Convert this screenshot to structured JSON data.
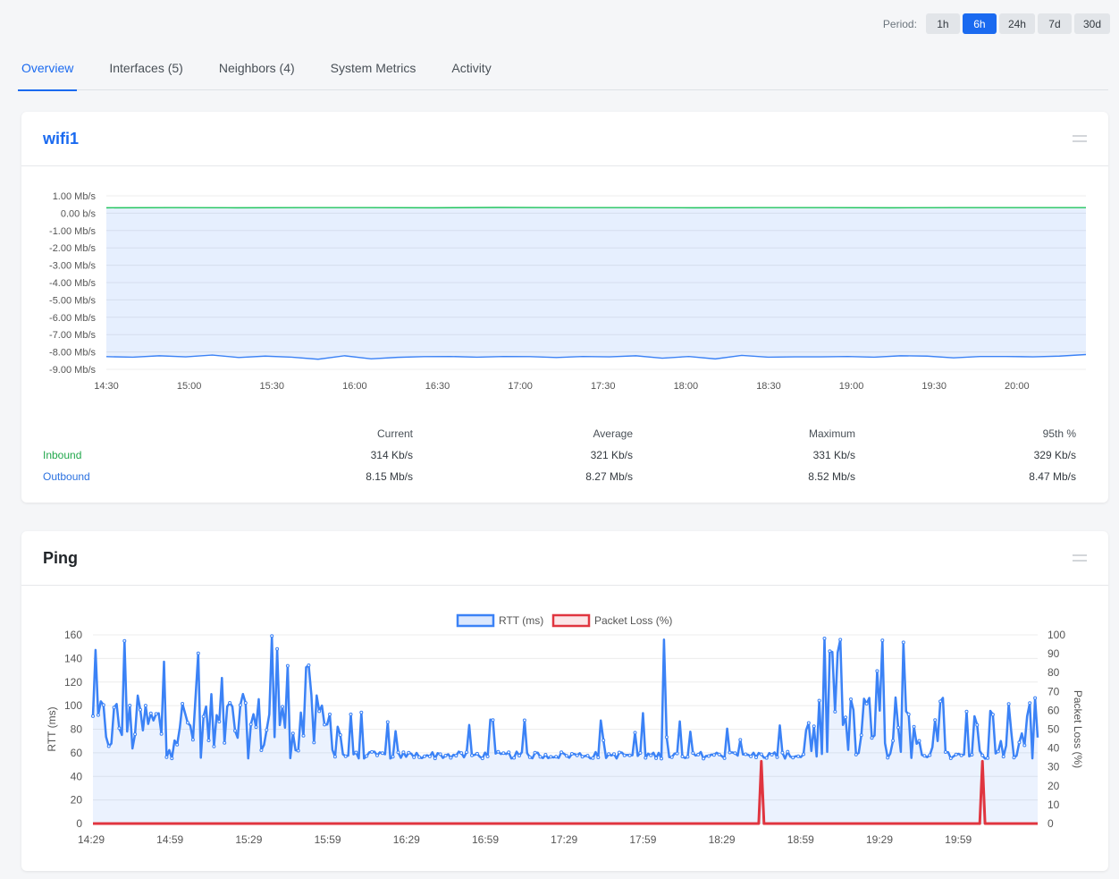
{
  "period": {
    "label": "Period:",
    "options": [
      "1h",
      "6h",
      "24h",
      "7d",
      "30d"
    ],
    "selected": "6h"
  },
  "tabs": [
    {
      "label": "Overview",
      "active": true
    },
    {
      "label": "Interfaces (5)",
      "active": false
    },
    {
      "label": "Neighbors (4)",
      "active": false
    },
    {
      "label": "System Metrics",
      "active": false
    },
    {
      "label": "Activity",
      "active": false
    }
  ],
  "wifi_card": {
    "title": "wifi1",
    "stats": {
      "headers": [
        "Current",
        "Average",
        "Maximum",
        "95th %"
      ],
      "rows": [
        {
          "label": "Inbound",
          "values": [
            "314 Kb/s",
            "321 Kb/s",
            "331 Kb/s",
            "329 Kb/s"
          ]
        },
        {
          "label": "Outbound",
          "values": [
            "8.15 Mb/s",
            "8.27 Mb/s",
            "8.52 Mb/s",
            "8.47 Mb/s"
          ]
        }
      ]
    }
  },
  "ping_card": {
    "title": "Ping"
  },
  "colors": {
    "accent": "#1a6af0",
    "inbound": "#22c55e",
    "outbound": "#3b82f6",
    "rtt": "#3b82f6",
    "loss": "#e0353f"
  },
  "chart_data": [
    {
      "type": "area",
      "yticks": [
        "1.00 Mb/s",
        "0.00 b/s",
        "-1.00 Mb/s",
        "-2.00 Mb/s",
        "-3.00 Mb/s",
        "-4.00 Mb/s",
        "-5.00 Mb/s",
        "-6.00 Mb/s",
        "-7.00 Mb/s",
        "-8.00 Mb/s",
        "-9.00 Mb/s"
      ],
      "ylim": [
        -9,
        1
      ],
      "xticks": [
        "14:30",
        "15:00",
        "15:30",
        "16:00",
        "16:30",
        "17:00",
        "17:30",
        "18:00",
        "18:30",
        "19:00",
        "19:30",
        "20:00"
      ],
      "x_range_minutes_from_1430": [
        0,
        355
      ],
      "series": [
        {
          "name": "Inbound",
          "values_mbps": [
            0.31,
            0.32,
            0.31,
            0.32,
            0.32,
            0.31,
            0.33,
            0.32,
            0.32,
            0.31,
            0.32,
            0.32,
            0.31,
            0.32,
            0.32,
            0.32
          ]
        },
        {
          "name": "Outbound",
          "values_mbps": [
            -8.27,
            -8.3,
            -8.22,
            -8.28,
            -8.18,
            -8.32,
            -8.24,
            -8.3,
            -8.42,
            -8.22,
            -8.4,
            -8.31,
            -8.27,
            -8.26,
            -8.3,
            -8.26,
            -8.27,
            -8.32,
            -8.26,
            -8.28,
            -8.22,
            -8.36,
            -8.26,
            -8.4,
            -8.2,
            -8.3,
            -8.28,
            -8.28,
            -8.26,
            -8.3,
            -8.22,
            -8.24,
            -8.34,
            -8.26,
            -8.26,
            -8.28,
            -8.24,
            -8.15
          ]
        }
      ],
      "grid": true
    },
    {
      "type": "line",
      "legend": [
        "RTT (ms)",
        "Packet Loss (%)"
      ],
      "legend_position": "top-center",
      "ylabel_left": "RTT (ms)",
      "ylabel_right": "Packet Loss (%)",
      "yleft_ticks": [
        0,
        20,
        40,
        60,
        80,
        100,
        120,
        140,
        160
      ],
      "yright_ticks": [
        0,
        10,
        20,
        30,
        40,
        50,
        60,
        70,
        80,
        90,
        100
      ],
      "ylim_left": [
        0,
        160
      ],
      "ylim_right": [
        0,
        100
      ],
      "xticks": [
        "14:29",
        "14:59",
        "15:29",
        "15:59",
        "16:29",
        "16:59",
        "17:29",
        "17:59",
        "18:29",
        "18:59",
        "19:29",
        "19:59"
      ],
      "rtt_seed": 12345,
      "rtt_points": 360,
      "loss_spikes_minute": [
        254,
        338
      ],
      "loss_spike_value": 33,
      "grid": true
    }
  ]
}
